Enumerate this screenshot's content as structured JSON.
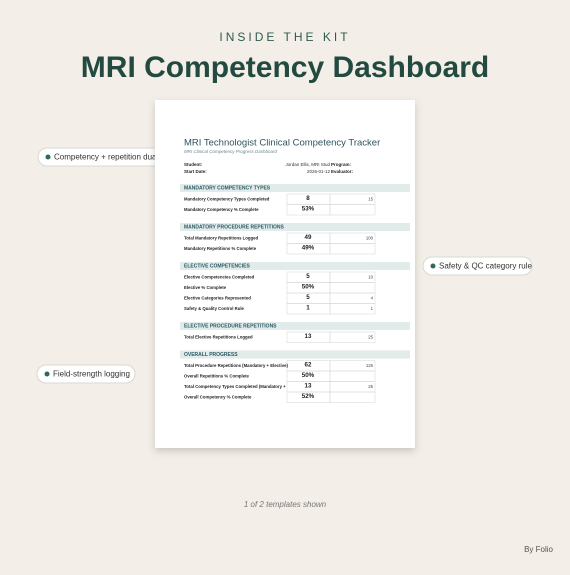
{
  "header": {
    "kicker": "INSIDE THE KIT",
    "title": "MRI Competency Dashboard"
  },
  "document": {
    "title": "MRI Technologist Clinical Competency Tracker",
    "subtitle": "MRI Clinical Competency Progress Dashboard",
    "info": [
      {
        "label": "Student:",
        "value": "Jordan Ellis, MRI Stud",
        "label2": "Program:"
      },
      {
        "label": "Start Date:",
        "value": "2026-01-12",
        "label2": "Evaluator:"
      }
    ],
    "sections": [
      {
        "title": "MANDATORY COMPETENCY TYPES",
        "rows": [
          {
            "label": "Mandatory Competency Types Completed",
            "value": 8,
            "target": 15
          },
          {
            "label": "Mandatory Competency % Complete",
            "value": "53%"
          }
        ]
      },
      {
        "title": "MANDATORY PROCEDURE REPETITIONS",
        "rows": [
          {
            "label": "Total Mandatory Repetitions Logged",
            "value": 49,
            "target": 100
          },
          {
            "label": "Mandatory Repetitions % Complete",
            "value": "49%"
          }
        ]
      },
      {
        "title": "ELECTIVE COMPETENCIES",
        "rows": [
          {
            "label": "Elective Competencies Completed",
            "value": 5,
            "target": 10
          },
          {
            "label": "Elective % Complete",
            "value": "50%"
          },
          {
            "label": "Elective Categories Represented",
            "value": 5,
            "target": 4
          },
          {
            "label": "Safety & Quality Control Rule",
            "value": 1,
            "target": 1
          }
        ]
      },
      {
        "title": "ELECTIVE PROCEDURE REPETITIONS",
        "rows": [
          {
            "label": "Total Elective Repetitions Logged",
            "value": 13,
            "target": 25
          }
        ]
      },
      {
        "title": "OVERALL PROGRESS",
        "rows": [
          {
            "label": "Total Procedure Repetitions (Mandatory + Elective)",
            "value": 62,
            "target": 125
          },
          {
            "label": "Overall Repetitions % Complete",
            "value": "50%"
          },
          {
            "label": "Total Competency Types Completed (Mandatory +",
            "value": 13,
            "target": 25
          },
          {
            "label": "Overall Competency % Complete",
            "value": "52%"
          }
        ]
      }
    ]
  },
  "callouts": [
    "Competency + repetition dual c",
    "Safety & QC category rule",
    "Field-strength logging"
  ],
  "footer": {
    "caption": "1 of 2 templates shown",
    "credit": "By Folio"
  }
}
